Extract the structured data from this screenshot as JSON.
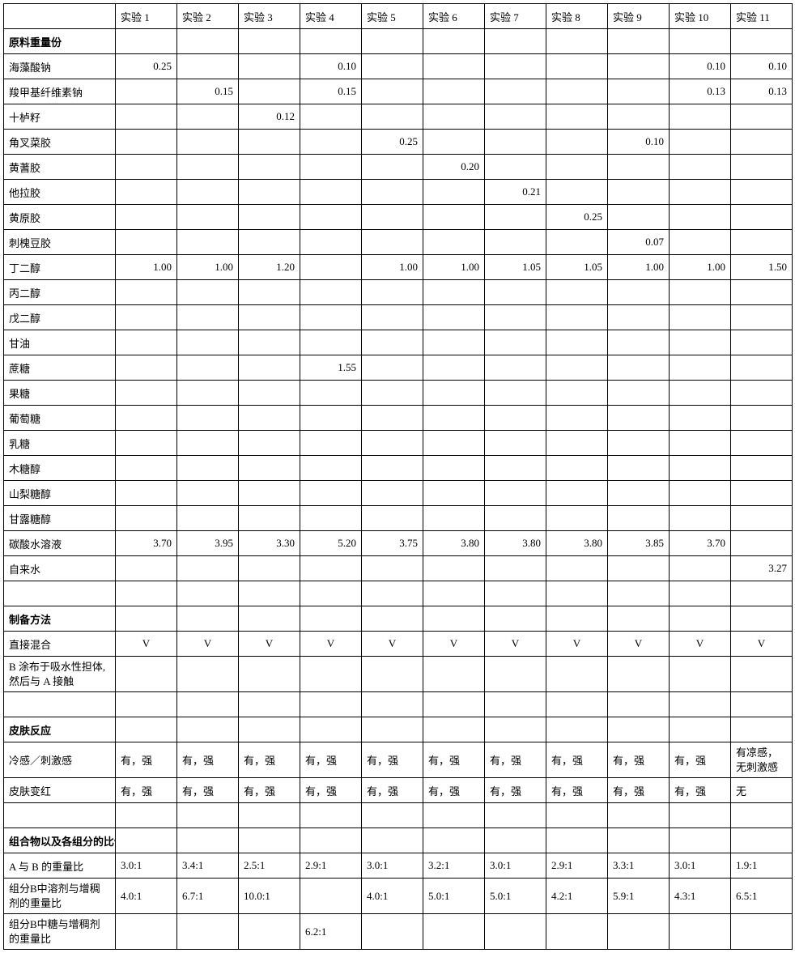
{
  "columns": [
    "实验 1",
    "实验 2",
    "实验 3",
    "实验 4",
    "实验 5",
    "实验 6",
    "实验 7",
    "实验 8",
    "实验 9",
    "实验 10",
    "实验 11"
  ],
  "sections": {
    "ingredients_title": "原料重量份",
    "method_title": "制备方法",
    "skin_title": "皮肤反应",
    "ratio_title": "组合物以及各组分的比例"
  },
  "ingredient_rows": [
    {
      "label": "海藻酸钠",
      "v": [
        "0.25",
        "",
        "",
        "0.10",
        "",
        "",
        "",
        "",
        "",
        "0.10",
        "0.10"
      ]
    },
    {
      "label": "羧甲基纤维素钠",
      "v": [
        "",
        "0.15",
        "",
        "0.15",
        "",
        "",
        "",
        "",
        "",
        "0.13",
        "0.13"
      ]
    },
    {
      "label": "十栌籽",
      "v": [
        "",
        "",
        "0.12",
        "",
        "",
        "",
        "",
        "",
        "",
        "",
        ""
      ]
    },
    {
      "label": "角叉菜胶",
      "v": [
        "",
        "",
        "",
        "",
        "0.25",
        "",
        "",
        "",
        "0.10",
        "",
        ""
      ]
    },
    {
      "label": "黄蓍胶",
      "v": [
        "",
        "",
        "",
        "",
        "",
        "0.20",
        "",
        "",
        "",
        "",
        ""
      ]
    },
    {
      "label": "他拉胶",
      "v": [
        "",
        "",
        "",
        "",
        "",
        "",
        "0.21",
        "",
        "",
        "",
        ""
      ]
    },
    {
      "label": "黄原胶",
      "v": [
        "",
        "",
        "",
        "",
        "",
        "",
        "",
        "0.25",
        "",
        "",
        ""
      ]
    },
    {
      "label": "刺槐豆胶",
      "v": [
        "",
        "",
        "",
        "",
        "",
        "",
        "",
        "",
        "0.07",
        "",
        ""
      ]
    },
    {
      "label": "丁二醇",
      "v": [
        "1.00",
        "1.00",
        "1.20",
        "",
        "1.00",
        "1.00",
        "1.05",
        "1.05",
        "1.00",
        "1.00",
        "1.50"
      ]
    },
    {
      "label": "丙二醇",
      "v": [
        "",
        "",
        "",
        "",
        "",
        "",
        "",
        "",
        "",
        "",
        ""
      ]
    },
    {
      "label": "戊二醇",
      "v": [
        "",
        "",
        "",
        "",
        "",
        "",
        "",
        "",
        "",
        "",
        ""
      ]
    },
    {
      "label": "甘油",
      "v": [
        "",
        "",
        "",
        "",
        "",
        "",
        "",
        "",
        "",
        "",
        ""
      ]
    },
    {
      "label": "蔗糖",
      "v": [
        "",
        "",
        "",
        "1.55",
        "",
        "",
        "",
        "",
        "",
        "",
        ""
      ]
    },
    {
      "label": "果糖",
      "v": [
        "",
        "",
        "",
        "",
        "",
        "",
        "",
        "",
        "",
        "",
        ""
      ]
    },
    {
      "label": "葡萄糖",
      "v": [
        "",
        "",
        "",
        "",
        "",
        "",
        "",
        "",
        "",
        "",
        ""
      ]
    },
    {
      "label": "乳糖",
      "v": [
        "",
        "",
        "",
        "",
        "",
        "",
        "",
        "",
        "",
        "",
        ""
      ]
    },
    {
      "label": "木糖醇",
      "v": [
        "",
        "",
        "",
        "",
        "",
        "",
        "",
        "",
        "",
        "",
        ""
      ]
    },
    {
      "label": "山梨糖醇",
      "v": [
        "",
        "",
        "",
        "",
        "",
        "",
        "",
        "",
        "",
        "",
        ""
      ]
    },
    {
      "label": "甘露糖醇",
      "v": [
        "",
        "",
        "",
        "",
        "",
        "",
        "",
        "",
        "",
        "",
        ""
      ]
    },
    {
      "label": "碳酸水溶液",
      "v": [
        "3.70",
        "3.95",
        "3.30",
        "5.20",
        "3.75",
        "3.80",
        "3.80",
        "3.80",
        "3.85",
        "3.70",
        ""
      ]
    },
    {
      "label": "自来水",
      "v": [
        "",
        "",
        "",
        "",
        "",
        "",
        "",
        "",
        "",
        "",
        "3.27"
      ]
    }
  ],
  "method_rows": [
    {
      "label": "直接混合",
      "align": "ctr",
      "v": [
        "V",
        "V",
        "V",
        "V",
        "V",
        "V",
        "V",
        "V",
        "V",
        "V",
        "V"
      ]
    },
    {
      "label": "B 涂布于吸水性担体,然后与 A 接触",
      "wrap": true,
      "align": "left",
      "v": [
        "",
        "",
        "",
        "",
        "",
        "",
        "",
        "",
        "",
        "",
        ""
      ]
    }
  ],
  "skin_rows": [
    {
      "label": "冷感／刺激感",
      "align": "left",
      "wrap_last": true,
      "v": [
        "有，强",
        "有，强",
        "有，强",
        "有，强",
        "有，强",
        "有，强",
        "有，强",
        "有，强",
        "有，强",
        "有，强",
        "有凉感，无刺激感"
      ]
    },
    {
      "label": "皮肤变红",
      "align": "left",
      "v": [
        "有，强",
        "有，强",
        "有，强",
        "有，强",
        "有，强",
        "有，强",
        "有，强",
        "有，强",
        "有，强",
        "有，强",
        "无"
      ]
    }
  ],
  "ratio_rows": [
    {
      "label": "A 与 B 的重量比",
      "align": "left",
      "v": [
        "3.0:1",
        "3.4:1",
        "2.5:1",
        "2.9:1",
        "3.0:1",
        "3.2:1",
        "3.0:1",
        "2.9:1",
        "3.3:1",
        "3.0:1",
        "1.9:1"
      ]
    },
    {
      "label": "组分B中溶剂与增稠剂的重量比",
      "wrap": true,
      "align": "left",
      "v": [
        "4.0:1",
        "6.7:1",
        "10.0:1",
        "",
        "4.0:1",
        "5.0:1",
        "5.0:1",
        "4.2:1",
        "5.9:1",
        "4.3:1",
        "6.5:1"
      ]
    },
    {
      "label": "组分B中糖与增稠剂的重量比",
      "wrap": true,
      "align": "left",
      "v": [
        "",
        "",
        "",
        "6.2:1",
        "",
        "",
        "",
        "",
        "",
        "",
        ""
      ]
    }
  ]
}
